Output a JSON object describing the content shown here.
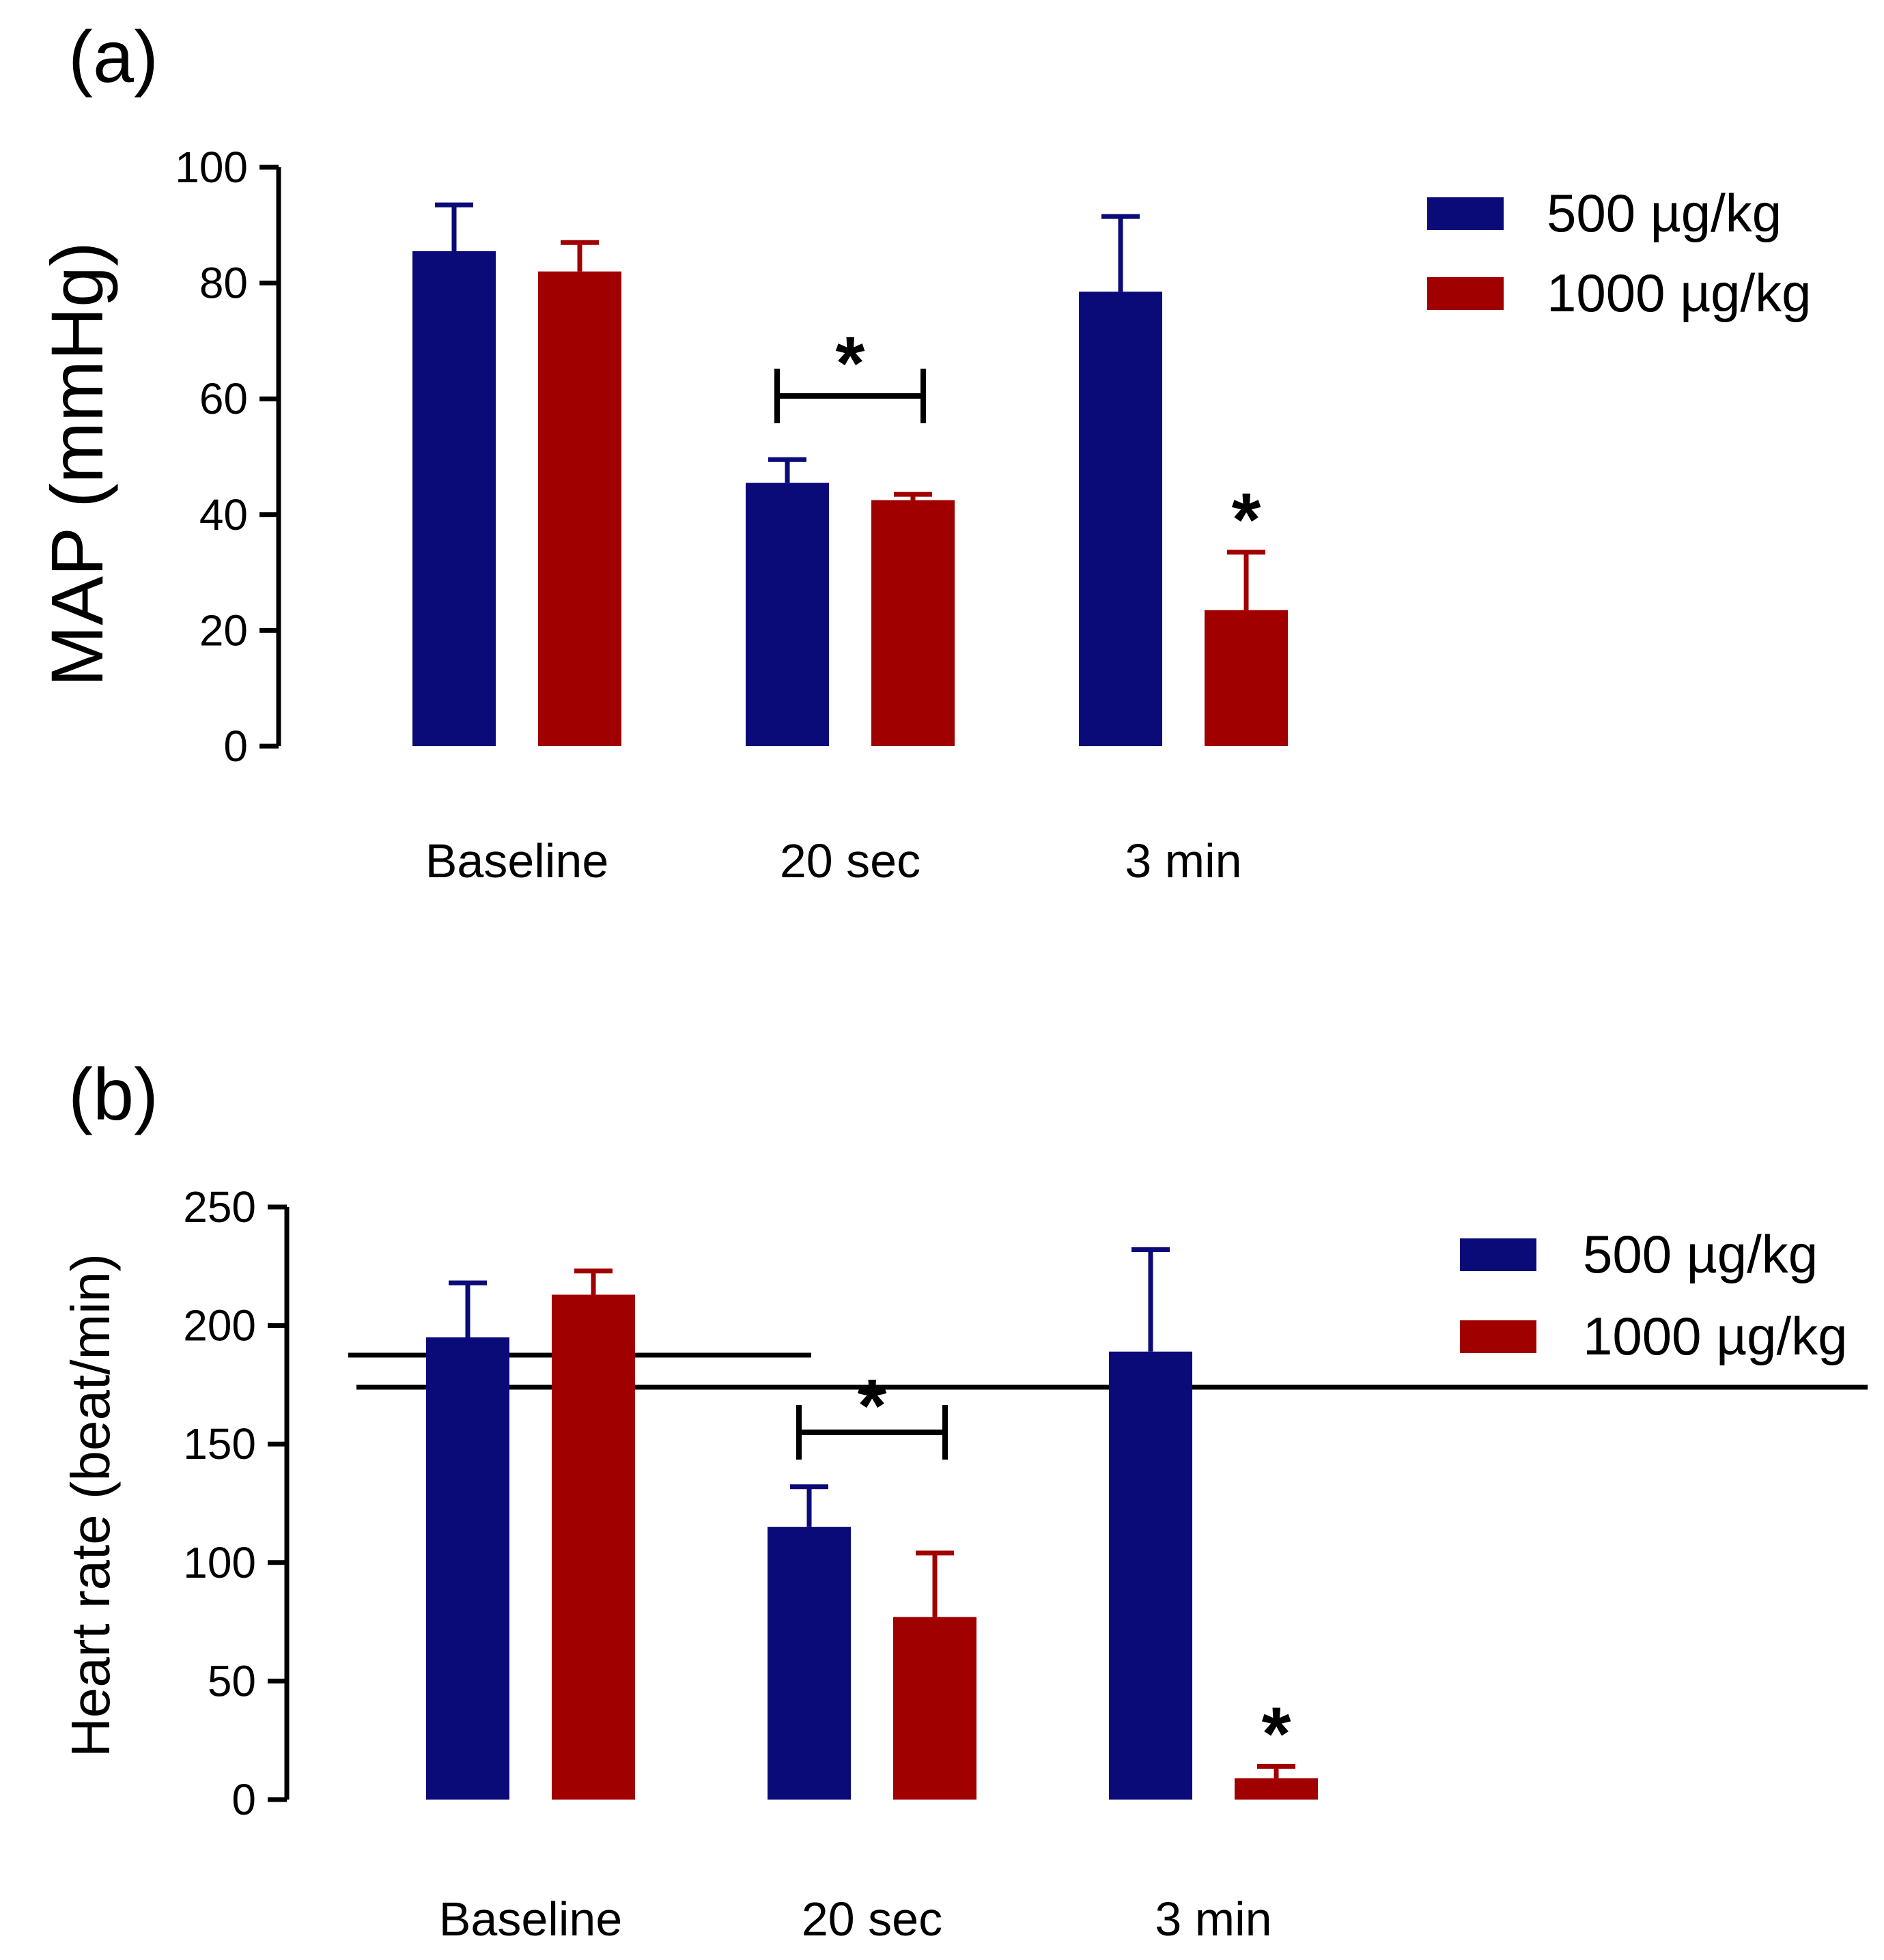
{
  "colors": {
    "series_500": "#0a0a78",
    "series_1000": "#a00000",
    "axis": "#000000"
  },
  "chart_data": [
    {
      "type": "bar",
      "panel_label": "(a)",
      "ylabel": "MAP (mmHg)",
      "xlabel": "",
      "categories": [
        "Baseline",
        "20 sec",
        "3 min"
      ],
      "ylim": [
        0,
        100
      ],
      "yticks": [
        "0",
        "20",
        "40",
        "60",
        "80",
        "100"
      ],
      "series": [
        {
          "name": "500 µg/kg",
          "color_key": "series_500",
          "values": [
            85.5,
            45.5,
            78.5
          ],
          "errors": [
            8,
            4,
            13
          ]
        },
        {
          "name": "1000 µg/kg",
          "color_key": "series_1000",
          "values": [
            82,
            42.5,
            23.5
          ],
          "errors": [
            5,
            1,
            10
          ]
        }
      ],
      "significance": [
        {
          "type": "bracket",
          "category": "20 sec",
          "label": "*"
        },
        {
          "type": "bar",
          "category": "3 min",
          "series": 1,
          "label": "*"
        }
      ],
      "legend": [
        "500 µg/kg",
        "1000 µg/kg"
      ],
      "legend_position": "right",
      "grid": false
    },
    {
      "type": "bar",
      "panel_label": "(b)",
      "ylabel": "Heart rate (beat/min)",
      "xlabel": "",
      "categories": [
        "Baseline",
        "20 sec",
        "3 min"
      ],
      "ylim": [
        0,
        250
      ],
      "yticks": [
        "0",
        "50",
        "100",
        "150",
        "200",
        "250"
      ],
      "series": [
        {
          "name": "500 µg/kg",
          "color_key": "series_500",
          "values": [
            195,
            115,
            189
          ],
          "errors": [
            23,
            17,
            43
          ]
        },
        {
          "name": "1000 µg/kg",
          "color_key": "series_1000",
          "values": [
            213,
            77,
            9
          ],
          "errors": [
            10,
            27,
            5
          ]
        }
      ],
      "significance": [
        {
          "type": "bracket",
          "category": "20 sec",
          "label": "*"
        },
        {
          "type": "bar",
          "category": "3 min",
          "series": 1,
          "label": "*"
        }
      ],
      "legend": [
        "500 µg/kg",
        "1000 µg/kg"
      ],
      "legend_position": "right",
      "grid": false
    }
  ]
}
